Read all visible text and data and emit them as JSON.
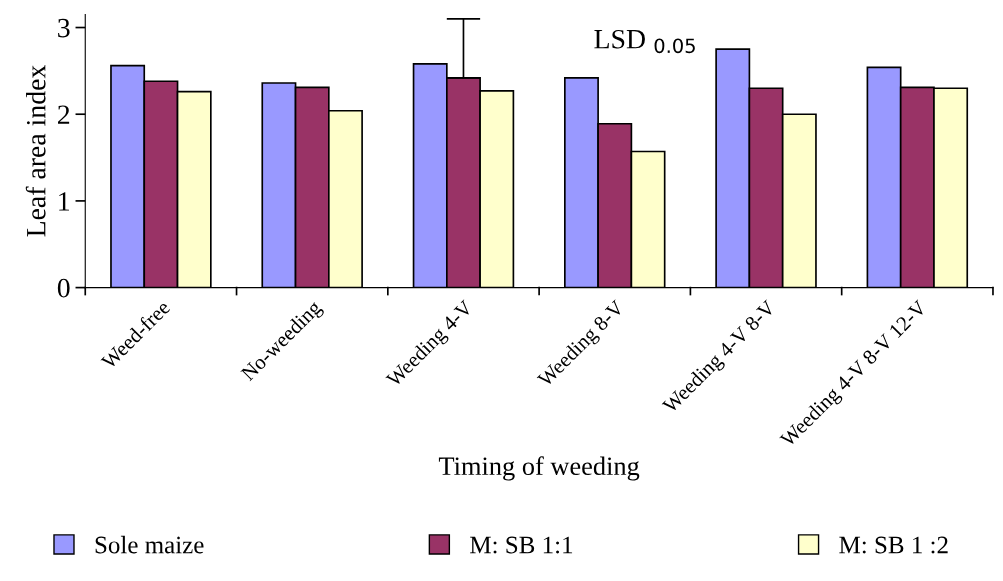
{
  "chart_data": {
    "type": "bar",
    "xlabel": "Timing of weeding",
    "ylabel": "Leaf area index",
    "categories": [
      "Weed-free",
      "No-weeding",
      "Weeding 4-V",
      "Weeding 8-V",
      "Weeding 4-V 8-V",
      "Weeding 4-V 8-V 12-V"
    ],
    "series": [
      {
        "name": "Sole maize",
        "color": "#9999ff",
        "values": [
          2.56,
          2.36,
          2.58,
          2.42,
          2.75,
          2.54
        ]
      },
      {
        "name": "M: SB 1:1",
        "color": "#993366",
        "values": [
          2.38,
          2.31,
          2.42,
          1.89,
          2.3,
          2.31
        ],
        "errors": [
          null,
          null,
          [
            2.42,
            3.1
          ],
          null,
          null,
          null
        ]
      },
      {
        "name": "M: SB 1 :2",
        "color": "#ffffcc",
        "values": [
          2.26,
          2.04,
          2.27,
          1.57,
          2.0,
          2.3
        ]
      }
    ],
    "ylim": [
      0,
      3.15
    ],
    "yticks": [
      0,
      1,
      2,
      3
    ],
    "grid": false,
    "legend": "bottom",
    "annotations": [
      "LSD $_{0.05}$"
    ]
  }
}
